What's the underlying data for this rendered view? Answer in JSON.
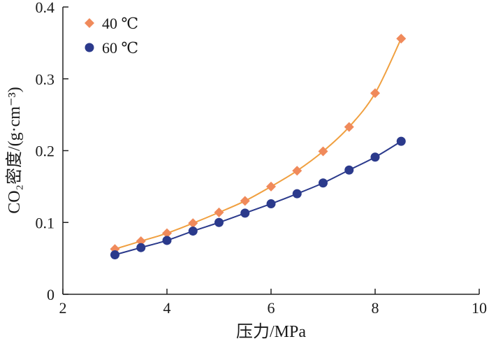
{
  "chart_data": {
    "type": "line",
    "xlabel": "压力/MPa",
    "ylabel": "CO₂密度/(g·cm⁻³)",
    "xlim": [
      2,
      10
    ],
    "ylim": [
      0,
      0.4
    ],
    "x_ticks": [
      "2",
      "4",
      "6",
      "8",
      "10"
    ],
    "y_ticks": [
      "0",
      "0.1",
      "0.2",
      "0.3",
      "0.4"
    ],
    "x": [
      3.0,
      3.5,
      4.0,
      4.5,
      5.0,
      5.5,
      6.0,
      6.5,
      7.0,
      7.5,
      8.0,
      8.5
    ],
    "series": [
      {
        "name": "40 ℃",
        "marker": "diamond",
        "color": "#f08a5b",
        "line_color": "#f0a040",
        "values": [
          0.063,
          0.074,
          0.085,
          0.099,
          0.114,
          0.13,
          0.15,
          0.172,
          0.199,
          0.233,
          0.28,
          0.356
        ]
      },
      {
        "name": "60 ℃",
        "marker": "circle",
        "color": "#2b3a8c",
        "line_color": "#2b3a8c",
        "values": [
          0.055,
          0.065,
          0.075,
          0.088,
          0.1,
          0.113,
          0.126,
          0.14,
          0.155,
          0.173,
          0.191,
          0.213
        ]
      }
    ],
    "legend_position": "top-left",
    "grid": false
  }
}
